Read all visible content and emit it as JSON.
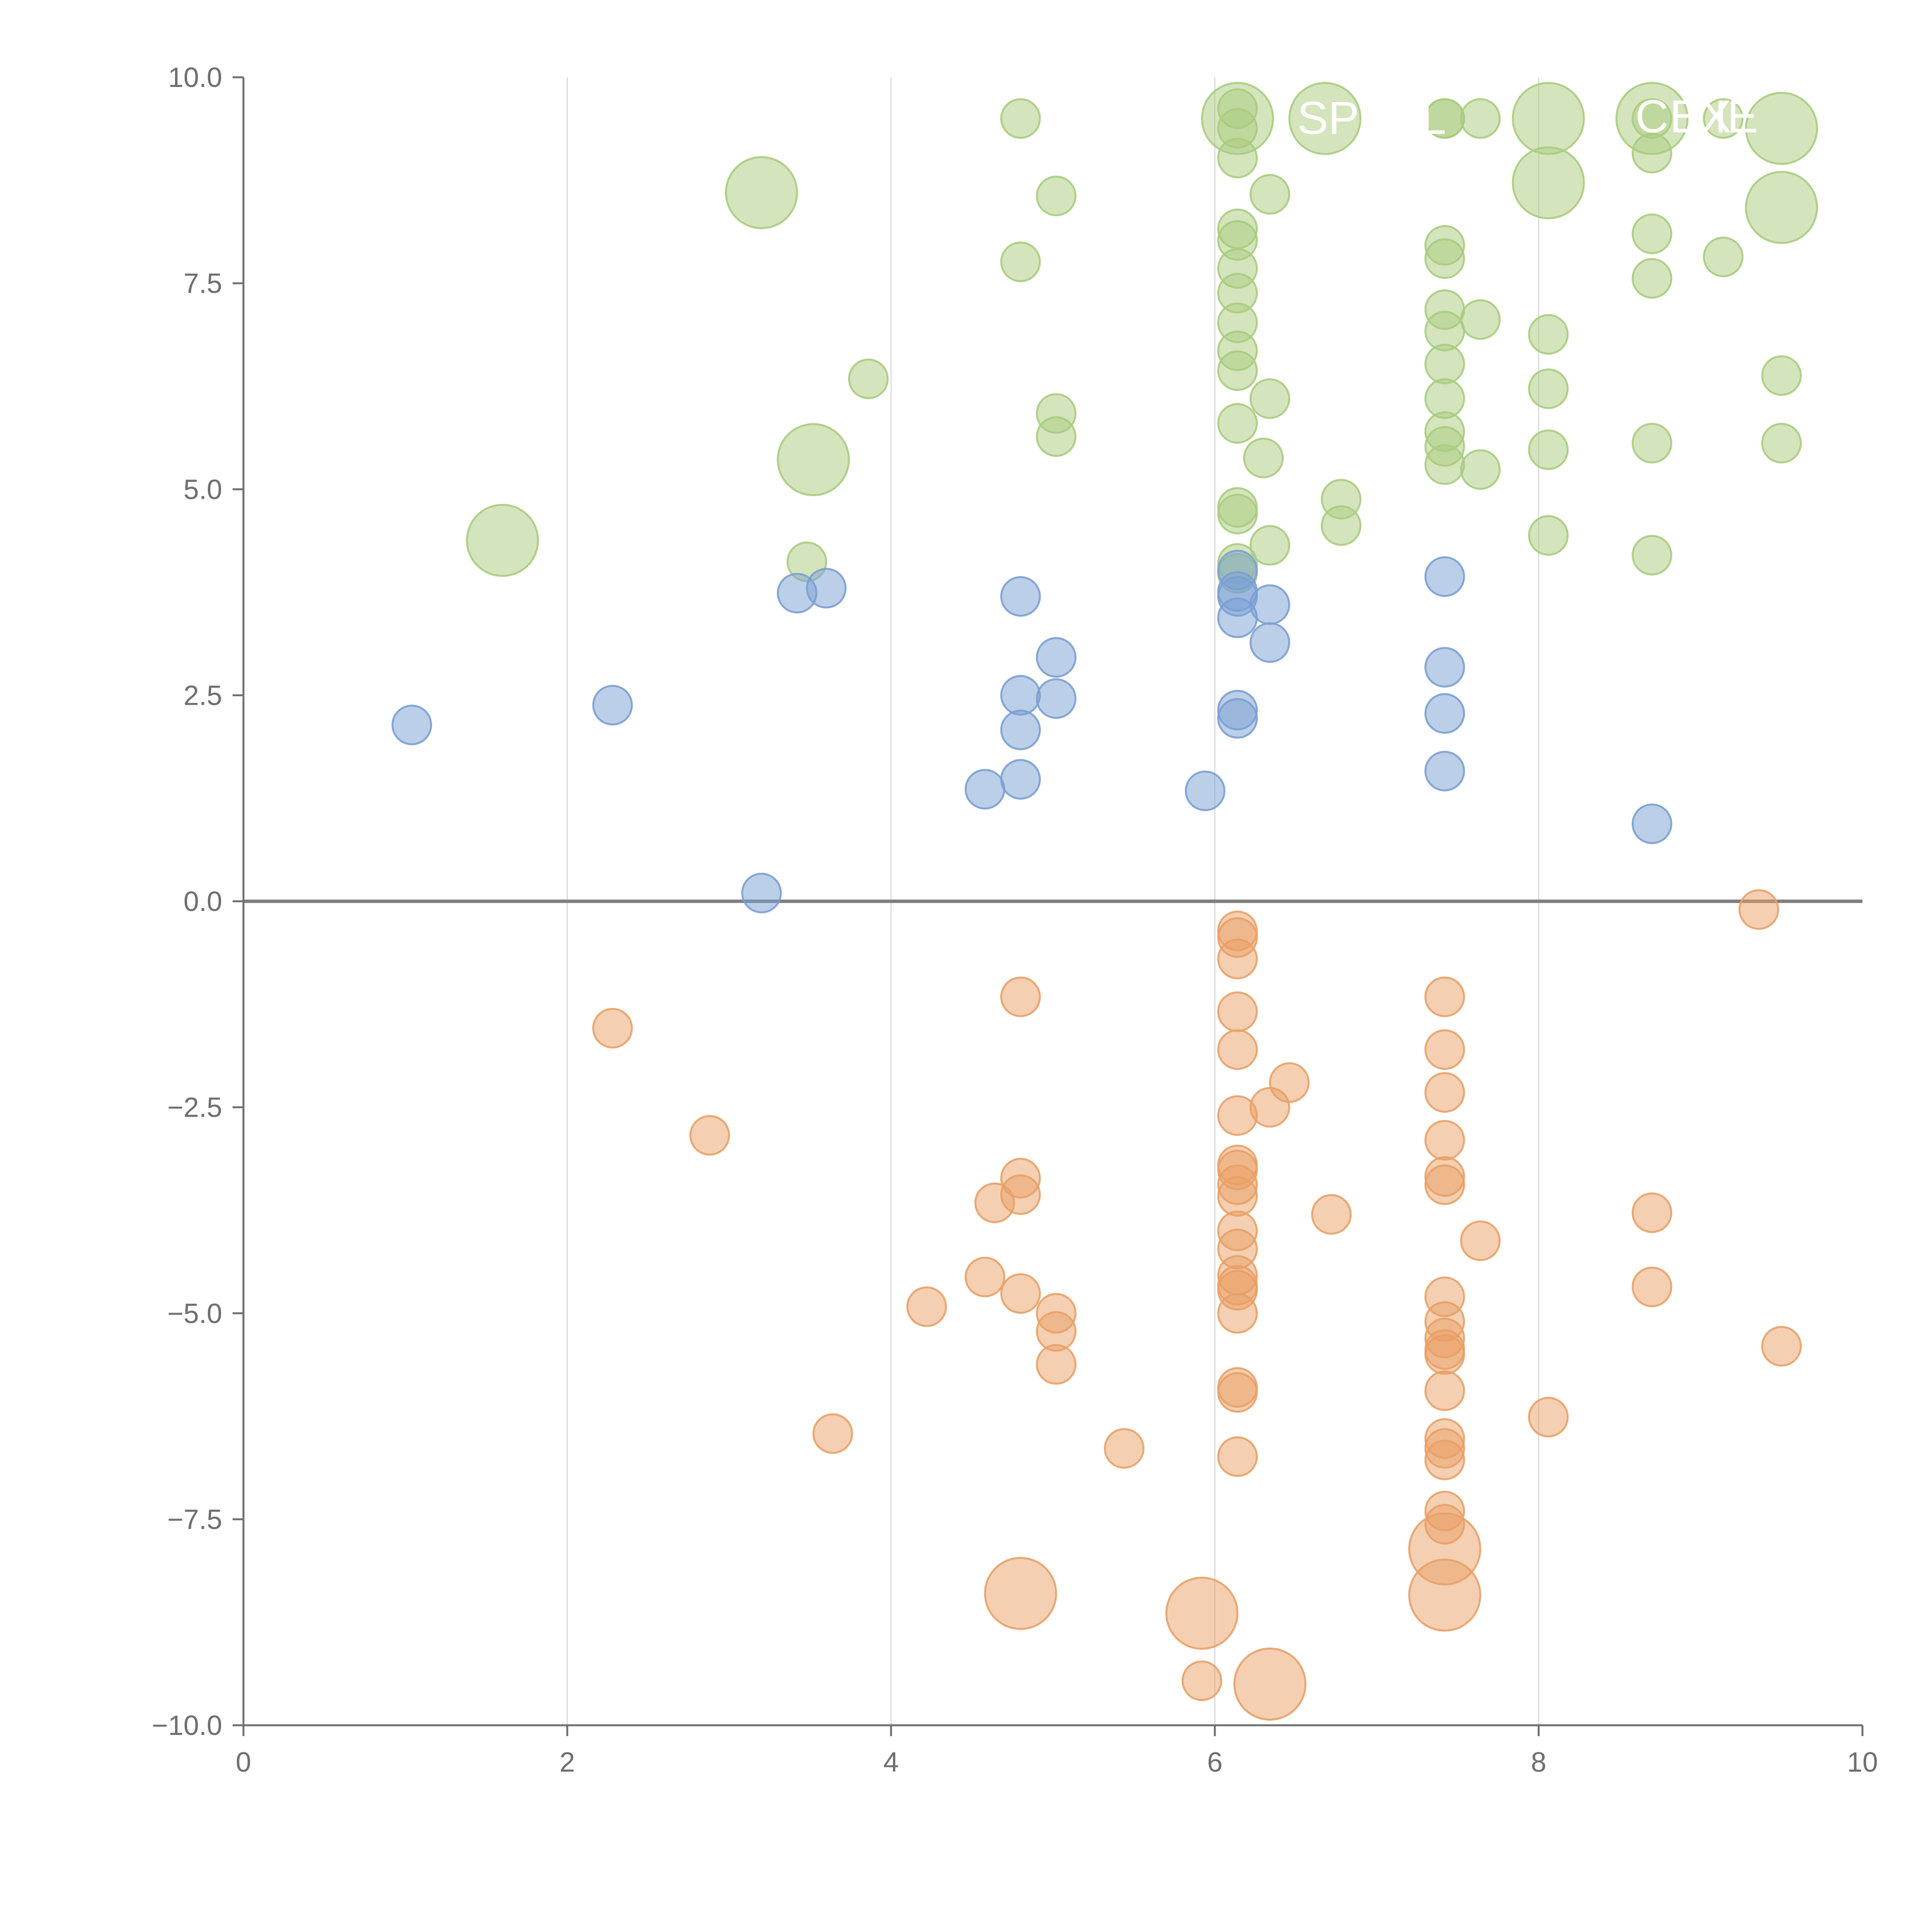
{
  "chart_data": {
    "type": "scatter",
    "title": "",
    "xlabel": "",
    "ylabel": "",
    "xlim": [
      0,
      10
    ],
    "ylim": [
      -10,
      10
    ],
    "x_ticks": [
      0,
      2,
      4,
      6,
      8,
      10
    ],
    "x_tick_labels": [
      "0",
      "2",
      "4",
      "6",
      "8",
      "10"
    ],
    "y_ticks": [
      10,
      7.5,
      5,
      2.5,
      0,
      -2.5,
      -5,
      -7.5,
      -10
    ],
    "y_tick_labels": [
      "10.0",
      "7.5",
      "5.0",
      "2.5",
      "0.0",
      "−2.5",
      "−5.0",
      "−7.5",
      "−10.0"
    ],
    "grid": {
      "vertical": true,
      "horizontal": false
    },
    "zero_line": 0,
    "colors": {
      "green": "#a9cc7e",
      "blue": "#7a9fd3",
      "orange": "#e9a066",
      "axis": "#6f6f6f",
      "grid": "#d9d9d9"
    },
    "series": [
      {
        "name": "green",
        "color": "#a9cc7e",
        "points": [
          {
            "x": 4.8,
            "y": 9.5,
            "s": 1
          },
          {
            "x": 6.14,
            "y": 9.5,
            "s": 3
          },
          {
            "x": 6.68,
            "y": 9.5,
            "s": 3
          },
          {
            "x": 7.42,
            "y": 9.5,
            "s": 1
          },
          {
            "x": 7.64,
            "y": 9.5,
            "s": 1
          },
          {
            "x": 8.06,
            "y": 9.5,
            "s": 3
          },
          {
            "x": 8.7,
            "y": 9.5,
            "s": 3
          },
          {
            "x": 9.14,
            "y": 9.5,
            "s": 1
          },
          {
            "x": 9.5,
            "y": 9.38,
            "s": 3
          },
          {
            "x": 6.14,
            "y": 9.62,
            "s": 1
          },
          {
            "x": 6.14,
            "y": 9.38,
            "s": 1
          },
          {
            "x": 7.42,
            "y": 9.5,
            "s": 1
          },
          {
            "x": 6.14,
            "y": 9.02,
            "s": 1
          },
          {
            "x": 8.7,
            "y": 9.08,
            "s": 1
          },
          {
            "x": 8.7,
            "y": 9.5,
            "s": 1
          },
          {
            "x": 3.2,
            "y": 8.6,
            "s": 3
          },
          {
            "x": 5.02,
            "y": 8.56,
            "s": 1
          },
          {
            "x": 6.34,
            "y": 8.58,
            "s": 1
          },
          {
            "x": 8.06,
            "y": 8.72,
            "s": 3
          },
          {
            "x": 9.5,
            "y": 8.42,
            "s": 3
          },
          {
            "x": 6.14,
            "y": 8.16,
            "s": 1
          },
          {
            "x": 6.14,
            "y": 8.02,
            "s": 1
          },
          {
            "x": 7.42,
            "y": 7.96,
            "s": 1
          },
          {
            "x": 7.42,
            "y": 7.8,
            "s": 1
          },
          {
            "x": 8.7,
            "y": 8.1,
            "s": 1
          },
          {
            "x": 9.14,
            "y": 7.82,
            "s": 1
          },
          {
            "x": 4.8,
            "y": 7.76,
            "s": 1
          },
          {
            "x": 6.14,
            "y": 7.68,
            "s": 1
          },
          {
            "x": 8.7,
            "y": 7.56,
            "s": 1
          },
          {
            "x": 6.14,
            "y": 7.38,
            "s": 1
          },
          {
            "x": 7.42,
            "y": 7.18,
            "s": 1
          },
          {
            "x": 7.64,
            "y": 7.06,
            "s": 1
          },
          {
            "x": 6.14,
            "y": 7.02,
            "s": 1
          },
          {
            "x": 7.42,
            "y": 6.92,
            "s": 1
          },
          {
            "x": 8.06,
            "y": 6.88,
            "s": 1
          },
          {
            "x": 6.14,
            "y": 6.68,
            "s": 1
          },
          {
            "x": 7.42,
            "y": 6.52,
            "s": 1
          },
          {
            "x": 6.14,
            "y": 6.44,
            "s": 1
          },
          {
            "x": 3.86,
            "y": 6.34,
            "s": 1
          },
          {
            "x": 9.5,
            "y": 6.38,
            "s": 1
          },
          {
            "x": 8.06,
            "y": 6.22,
            "s": 1
          },
          {
            "x": 6.34,
            "y": 6.1,
            "s": 1
          },
          {
            "x": 7.42,
            "y": 6.1,
            "s": 1
          },
          {
            "x": 5.02,
            "y": 5.92,
            "s": 1
          },
          {
            "x": 6.14,
            "y": 5.8,
            "s": 1
          },
          {
            "x": 7.42,
            "y": 5.7,
            "s": 1
          },
          {
            "x": 5.02,
            "y": 5.64,
            "s": 1
          },
          {
            "x": 7.42,
            "y": 5.52,
            "s": 1
          },
          {
            "x": 8.7,
            "y": 5.56,
            "s": 1
          },
          {
            "x": 9.5,
            "y": 5.56,
            "s": 1
          },
          {
            "x": 8.06,
            "y": 5.48,
            "s": 1
          },
          {
            "x": 3.52,
            "y": 5.36,
            "s": 3
          },
          {
            "x": 6.3,
            "y": 5.38,
            "s": 1
          },
          {
            "x": 7.42,
            "y": 5.3,
            "s": 1
          },
          {
            "x": 7.64,
            "y": 5.24,
            "s": 1
          },
          {
            "x": 6.78,
            "y": 4.88,
            "s": 1
          },
          {
            "x": 6.14,
            "y": 4.78,
            "s": 1
          },
          {
            "x": 6.14,
            "y": 4.7,
            "s": 1
          },
          {
            "x": 6.78,
            "y": 4.56,
            "s": 1
          },
          {
            "x": 8.06,
            "y": 4.44,
            "s": 1
          },
          {
            "x": 1.6,
            "y": 4.38,
            "s": 3
          },
          {
            "x": 6.34,
            "y": 4.32,
            "s": 1
          },
          {
            "x": 8.7,
            "y": 4.2,
            "s": 1
          },
          {
            "x": 3.48,
            "y": 4.12,
            "s": 1
          },
          {
            "x": 6.14,
            "y": 4.1,
            "s": 1
          },
          {
            "x": 6.14,
            "y": 3.98,
            "s": 1
          }
        ]
      },
      {
        "name": "blue",
        "color": "#7a9fd3",
        "points": [
          {
            "x": 6.14,
            "y": 4.02,
            "s": 1
          },
          {
            "x": 7.42,
            "y": 3.94,
            "s": 1
          },
          {
            "x": 3.6,
            "y": 3.8,
            "s": 1
          },
          {
            "x": 3.42,
            "y": 3.74,
            "s": 1
          },
          {
            "x": 4.8,
            "y": 3.7,
            "s": 1
          },
          {
            "x": 6.14,
            "y": 3.76,
            "s": 1
          },
          {
            "x": 6.14,
            "y": 3.7,
            "s": 1
          },
          {
            "x": 6.34,
            "y": 3.6,
            "s": 1
          },
          {
            "x": 6.14,
            "y": 3.44,
            "s": 1
          },
          {
            "x": 6.34,
            "y": 3.14,
            "s": 1
          },
          {
            "x": 5.02,
            "y": 2.96,
            "s": 1
          },
          {
            "x": 7.42,
            "y": 2.84,
            "s": 1
          },
          {
            "x": 4.8,
            "y": 2.5,
            "s": 1
          },
          {
            "x": 5.02,
            "y": 2.46,
            "s": 1
          },
          {
            "x": 2.28,
            "y": 2.38,
            "s": 1
          },
          {
            "x": 6.14,
            "y": 2.32,
            "s": 1
          },
          {
            "x": 7.42,
            "y": 2.28,
            "s": 1
          },
          {
            "x": 6.14,
            "y": 2.22,
            "s": 1
          },
          {
            "x": 1.04,
            "y": 2.14,
            "s": 1
          },
          {
            "x": 4.8,
            "y": 2.08,
            "s": 1
          },
          {
            "x": 7.42,
            "y": 1.58,
            "s": 1
          },
          {
            "x": 4.8,
            "y": 1.48,
            "s": 1
          },
          {
            "x": 4.58,
            "y": 1.36,
            "s": 1
          },
          {
            "x": 5.94,
            "y": 1.34,
            "s": 1
          },
          {
            "x": 8.7,
            "y": 0.94,
            "s": 1
          },
          {
            "x": 3.2,
            "y": 0.1,
            "s": 1
          }
        ]
      },
      {
        "name": "orange",
        "color": "#e9a066",
        "points": [
          {
            "x": 9.36,
            "y": -0.1,
            "s": 1
          },
          {
            "x": 6.14,
            "y": -0.36,
            "s": 1
          },
          {
            "x": 6.14,
            "y": -0.44,
            "s": 1
          },
          {
            "x": 6.14,
            "y": -0.7,
            "s": 1
          },
          {
            "x": 4.8,
            "y": -1.16,
            "s": 1
          },
          {
            "x": 7.42,
            "y": -1.16,
            "s": 1
          },
          {
            "x": 6.14,
            "y": -1.34,
            "s": 1
          },
          {
            "x": 2.28,
            "y": -1.54,
            "s": 1
          },
          {
            "x": 6.14,
            "y": -1.8,
            "s": 1
          },
          {
            "x": 7.42,
            "y": -1.8,
            "s": 1
          },
          {
            "x": 6.46,
            "y": -2.2,
            "s": 1
          },
          {
            "x": 7.42,
            "y": -2.32,
            "s": 1
          },
          {
            "x": 6.34,
            "y": -2.5,
            "s": 1
          },
          {
            "x": 6.14,
            "y": -2.6,
            "s": 1
          },
          {
            "x": 2.88,
            "y": -2.84,
            "s": 1
          },
          {
            "x": 7.42,
            "y": -2.9,
            "s": 1
          },
          {
            "x": 6.14,
            "y": -3.2,
            "s": 1
          },
          {
            "x": 6.14,
            "y": -3.26,
            "s": 1
          },
          {
            "x": 4.8,
            "y": -3.36,
            "s": 1
          },
          {
            "x": 7.42,
            "y": -3.34,
            "s": 1
          },
          {
            "x": 6.14,
            "y": -3.44,
            "s": 1
          },
          {
            "x": 7.42,
            "y": -3.44,
            "s": 1
          },
          {
            "x": 4.8,
            "y": -3.56,
            "s": 1
          },
          {
            "x": 6.14,
            "y": -3.58,
            "s": 1
          },
          {
            "x": 4.64,
            "y": -3.66,
            "s": 1
          },
          {
            "x": 6.72,
            "y": -3.8,
            "s": 1
          },
          {
            "x": 8.7,
            "y": -3.78,
            "s": 1
          },
          {
            "x": 6.14,
            "y": -4.0,
            "s": 1
          },
          {
            "x": 7.64,
            "y": -4.12,
            "s": 1
          },
          {
            "x": 6.14,
            "y": -4.22,
            "s": 1
          },
          {
            "x": 6.14,
            "y": -4.54,
            "s": 1
          },
          {
            "x": 4.58,
            "y": -4.56,
            "s": 1
          },
          {
            "x": 8.7,
            "y": -4.68,
            "s": 1
          },
          {
            "x": 6.14,
            "y": -4.66,
            "s": 1
          },
          {
            "x": 6.14,
            "y": -4.72,
            "s": 1
          },
          {
            "x": 4.8,
            "y": -4.76,
            "s": 1
          },
          {
            "x": 7.42,
            "y": -4.8,
            "s": 1
          },
          {
            "x": 4.22,
            "y": -4.92,
            "s": 1
          },
          {
            "x": 5.02,
            "y": -5.0,
            "s": 1
          },
          {
            "x": 6.14,
            "y": -5.0,
            "s": 1
          },
          {
            "x": 7.42,
            "y": -5.1,
            "s": 1
          },
          {
            "x": 5.02,
            "y": -5.22,
            "s": 1
          },
          {
            "x": 7.42,
            "y": -5.3,
            "s": 1
          },
          {
            "x": 9.5,
            "y": -5.4,
            "s": 1
          },
          {
            "x": 7.42,
            "y": -5.44,
            "s": 1
          },
          {
            "x": 7.42,
            "y": -5.5,
            "s": 1
          },
          {
            "x": 5.02,
            "y": -5.62,
            "s": 1
          },
          {
            "x": 6.14,
            "y": -5.9,
            "s": 1
          },
          {
            "x": 6.14,
            "y": -5.96,
            "s": 1
          },
          {
            "x": 7.42,
            "y": -5.94,
            "s": 1
          },
          {
            "x": 8.06,
            "y": -6.26,
            "s": 1
          },
          {
            "x": 3.64,
            "y": -6.46,
            "s": 1
          },
          {
            "x": 7.42,
            "y": -6.52,
            "s": 1
          },
          {
            "x": 5.44,
            "y": -6.64,
            "s": 1
          },
          {
            "x": 7.42,
            "y": -6.64,
            "s": 1
          },
          {
            "x": 6.14,
            "y": -6.74,
            "s": 1
          },
          {
            "x": 7.42,
            "y": -6.78,
            "s": 1
          },
          {
            "x": 7.42,
            "y": -7.4,
            "s": 1
          },
          {
            "x": 7.42,
            "y": -7.56,
            "s": 1
          },
          {
            "x": 7.42,
            "y": -7.86,
            "s": 3
          },
          {
            "x": 4.8,
            "y": -8.4,
            "s": 3
          },
          {
            "x": 7.42,
            "y": -8.42,
            "s": 3
          },
          {
            "x": 5.92,
            "y": -8.64,
            "s": 3
          },
          {
            "x": 5.92,
            "y": -9.46,
            "s": 1
          },
          {
            "x": 6.34,
            "y": -9.5,
            "s": 3
          }
        ]
      }
    ],
    "annotations": [
      {
        "text": "SP",
        "x": 6.7,
        "y": 9.5
      },
      {
        "text": "L",
        "x": 7.35,
        "y": 9.5
      },
      {
        "text": "C",
        "x": 8.7,
        "y": 9.52
      },
      {
        "text": "EX",
        "x": 9.0,
        "y": 9.52
      },
      {
        "text": "IE",
        "x": 9.22,
        "y": 9.52
      }
    ]
  }
}
